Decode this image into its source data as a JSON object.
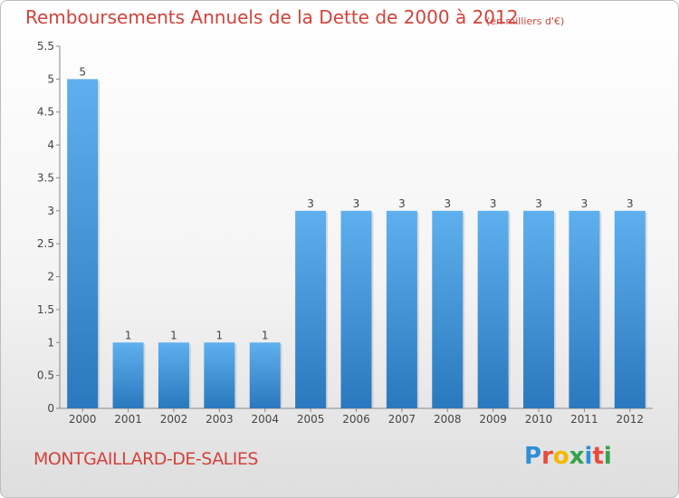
{
  "header": {
    "title": "Remboursements Annuels de la Dette de 2000 à 2012",
    "unit": "(en milliers d'€)"
  },
  "footer": {
    "commune": "MONTGAILLARD-DE-SALIES",
    "logo_letters": [
      {
        "char": "P",
        "color": "#2f8fd6"
      },
      {
        "char": "r",
        "color": "#e84a3c"
      },
      {
        "char": "o",
        "color": "#f5b800"
      },
      {
        "char": "x",
        "color": "#33a34a"
      },
      {
        "char": "i",
        "color": "#2f8fd6"
      },
      {
        "char": "t",
        "color": "#e84a3c"
      },
      {
        "char": "i",
        "color": "#33a34a"
      }
    ]
  },
  "chart_data": {
    "type": "bar",
    "title": "Remboursements Annuels de la Dette de 2000 à 2012",
    "xlabel": "",
    "ylabel": "",
    "categories": [
      "2000",
      "2001",
      "2002",
      "2003",
      "2004",
      "2005",
      "2006",
      "2007",
      "2008",
      "2009",
      "2010",
      "2011",
      "2012"
    ],
    "values": [
      5,
      1,
      1,
      1,
      1,
      3,
      3,
      3,
      3,
      3,
      3,
      3,
      3
    ],
    "data_labels": [
      "5",
      "1",
      "1",
      "1",
      "1",
      "3",
      "3",
      "3",
      "3",
      "3",
      "3",
      "3",
      "3"
    ],
    "ylim": [
      0,
      5.5
    ],
    "yticks": [
      "0",
      "0.5",
      "1",
      "1.5",
      "2",
      "2.5",
      "3",
      "3.5",
      "4",
      "4.5",
      "5",
      "5.5"
    ],
    "grid": false,
    "legend": "none",
    "bar_color": "#3a8fd8"
  }
}
